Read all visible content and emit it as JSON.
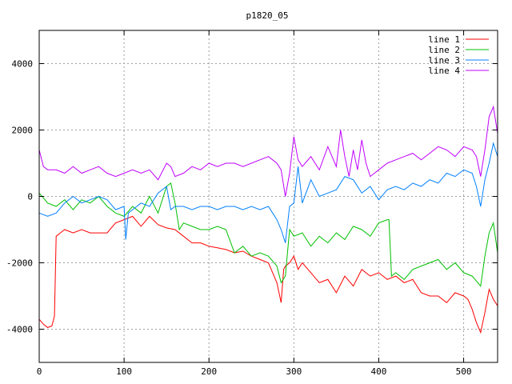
{
  "chart_data": {
    "type": "line",
    "title": "p1820_05",
    "xlabel": "",
    "ylabel": "",
    "xlim": [
      0,
      540
    ],
    "ylim": [
      -5000,
      5000
    ],
    "x_ticks": [
      0,
      100,
      200,
      300,
      400,
      500
    ],
    "y_ticks": [
      -4000,
      -2000,
      0,
      2000,
      4000
    ],
    "grid": true,
    "legend_position": "top-right",
    "series": [
      {
        "name": "line 1",
        "color": "#ff0000",
        "x": [
          0,
          5,
          10,
          15,
          18,
          20,
          25,
          30,
          40,
          50,
          60,
          70,
          80,
          90,
          100,
          110,
          120,
          130,
          140,
          150,
          160,
          170,
          180,
          190,
          200,
          210,
          220,
          230,
          240,
          250,
          260,
          270,
          275,
          280,
          285,
          288,
          290,
          295,
          300,
          305,
          310,
          320,
          330,
          340,
          350,
          360,
          370,
          380,
          390,
          400,
          410,
          420,
          430,
          440,
          450,
          460,
          470,
          480,
          490,
          500,
          505,
          510,
          515,
          520,
          525,
          530,
          535,
          540
        ],
        "y": [
          -3700,
          -3850,
          -3950,
          -3900,
          -3600,
          -1200,
          -1100,
          -1000,
          -1100,
          -1000,
          -1100,
          -1100,
          -1100,
          -800,
          -700,
          -600,
          -900,
          -600,
          -850,
          -950,
          -1000,
          -1200,
          -1400,
          -1400,
          -1500,
          -1550,
          -1600,
          -1700,
          -1650,
          -1800,
          -1900,
          -2000,
          -2300,
          -2600,
          -3200,
          -2200,
          -2100,
          -2000,
          -1800,
          -2200,
          -2000,
          -2300,
          -2600,
          -2500,
          -2900,
          -2400,
          -2700,
          -2200,
          -2400,
          -2300,
          -2500,
          -2400,
          -2600,
          -2500,
          -2900,
          -3000,
          -3000,
          -3200,
          -2900,
          -3000,
          -3100,
          -3400,
          -3800,
          -4100,
          -3500,
          -2800,
          -3100,
          -3300
        ]
      },
      {
        "name": "line 2",
        "color": "#00c000",
        "x": [
          0,
          10,
          20,
          30,
          40,
          50,
          60,
          70,
          80,
          90,
          100,
          110,
          120,
          130,
          140,
          150,
          155,
          160,
          165,
          170,
          180,
          190,
          200,
          210,
          220,
          230,
          240,
          250,
          260,
          270,
          280,
          285,
          290,
          295,
          300,
          310,
          320,
          330,
          340,
          350,
          360,
          370,
          380,
          390,
          400,
          410,
          412,
          415,
          420,
          430,
          440,
          450,
          460,
          470,
          480,
          490,
          500,
          510,
          520,
          525,
          530,
          535,
          540
        ],
        "y": [
          100,
          -200,
          -300,
          -100,
          -400,
          -100,
          -200,
          0,
          -300,
          -500,
          -600,
          -300,
          -500,
          0,
          -500,
          300,
          400,
          -200,
          -1000,
          -800,
          -900,
          -1000,
          -1000,
          -900,
          -1000,
          -1700,
          -1500,
          -1800,
          -1700,
          -1800,
          -2100,
          -2600,
          -2400,
          -1000,
          -1200,
          -1100,
          -1500,
          -1200,
          -1400,
          -1100,
          -1300,
          -900,
          -1000,
          -1200,
          -800,
          -700,
          -700,
          -2400,
          -2300,
          -2500,
          -2200,
          -2100,
          -2000,
          -1900,
          -2200,
          -2000,
          -2300,
          -2400,
          -2700,
          -1800,
          -1100,
          -800,
          -1700
        ]
      },
      {
        "name": "line 3",
        "color": "#0080ff",
        "x": [
          0,
          10,
          20,
          30,
          40,
          50,
          60,
          70,
          80,
          90,
          100,
          102,
          105,
          110,
          120,
          130,
          140,
          150,
          155,
          160,
          170,
          180,
          190,
          200,
          210,
          220,
          230,
          240,
          250,
          260,
          270,
          275,
          280,
          285,
          290,
          295,
          300,
          305,
          310,
          320,
          330,
          340,
          350,
          360,
          370,
          380,
          390,
          400,
          410,
          420,
          430,
          440,
          450,
          460,
          470,
          480,
          490,
          500,
          510,
          515,
          520,
          525,
          530,
          535,
          540
        ],
        "y": [
          -500,
          -600,
          -500,
          -200,
          0,
          -200,
          -100,
          0,
          -100,
          -400,
          -300,
          -1300,
          -500,
          -400,
          -200,
          -300,
          100,
          300,
          -400,
          -300,
          -300,
          -400,
          -300,
          -300,
          -400,
          -300,
          -300,
          -400,
          -300,
          -400,
          -300,
          -500,
          -700,
          -1000,
          -1400,
          -300,
          -200,
          900,
          -200,
          500,
          0,
          100,
          200,
          600,
          500,
          100,
          300,
          -100,
          200,
          300,
          200,
          400,
          300,
          500,
          400,
          700,
          600,
          800,
          700,
          300,
          -300,
          500,
          1000,
          1600,
          1200
        ]
      },
      {
        "name": "line 4",
        "color": "#c000ff",
        "x": [
          0,
          5,
          10,
          20,
          30,
          40,
          50,
          60,
          70,
          80,
          90,
          100,
          110,
          120,
          130,
          140,
          150,
          155,
          160,
          170,
          180,
          190,
          200,
          210,
          220,
          230,
          240,
          250,
          260,
          270,
          280,
          285,
          290,
          295,
          300,
          305,
          310,
          320,
          330,
          340,
          350,
          355,
          360,
          365,
          370,
          375,
          380,
          385,
          390,
          400,
          410,
          420,
          430,
          440,
          450,
          460,
          470,
          480,
          490,
          500,
          510,
          515,
          520,
          525,
          530,
          535,
          540
        ],
        "y": [
          1400,
          900,
          800,
          800,
          700,
          900,
          700,
          800,
          900,
          700,
          600,
          700,
          800,
          700,
          800,
          500,
          1000,
          900,
          600,
          700,
          900,
          800,
          1000,
          900,
          1000,
          1000,
          900,
          1000,
          1100,
          1200,
          1000,
          800,
          0,
          700,
          1800,
          1100,
          900,
          1200,
          800,
          1500,
          900,
          2000,
          1200,
          600,
          1400,
          800,
          1700,
          1000,
          600,
          800,
          1000,
          1100,
          1200,
          1300,
          1100,
          1300,
          1500,
          1400,
          1200,
          1500,
          1400,
          1200,
          600,
          1400,
          2400,
          2700,
          1900
        ]
      }
    ]
  }
}
